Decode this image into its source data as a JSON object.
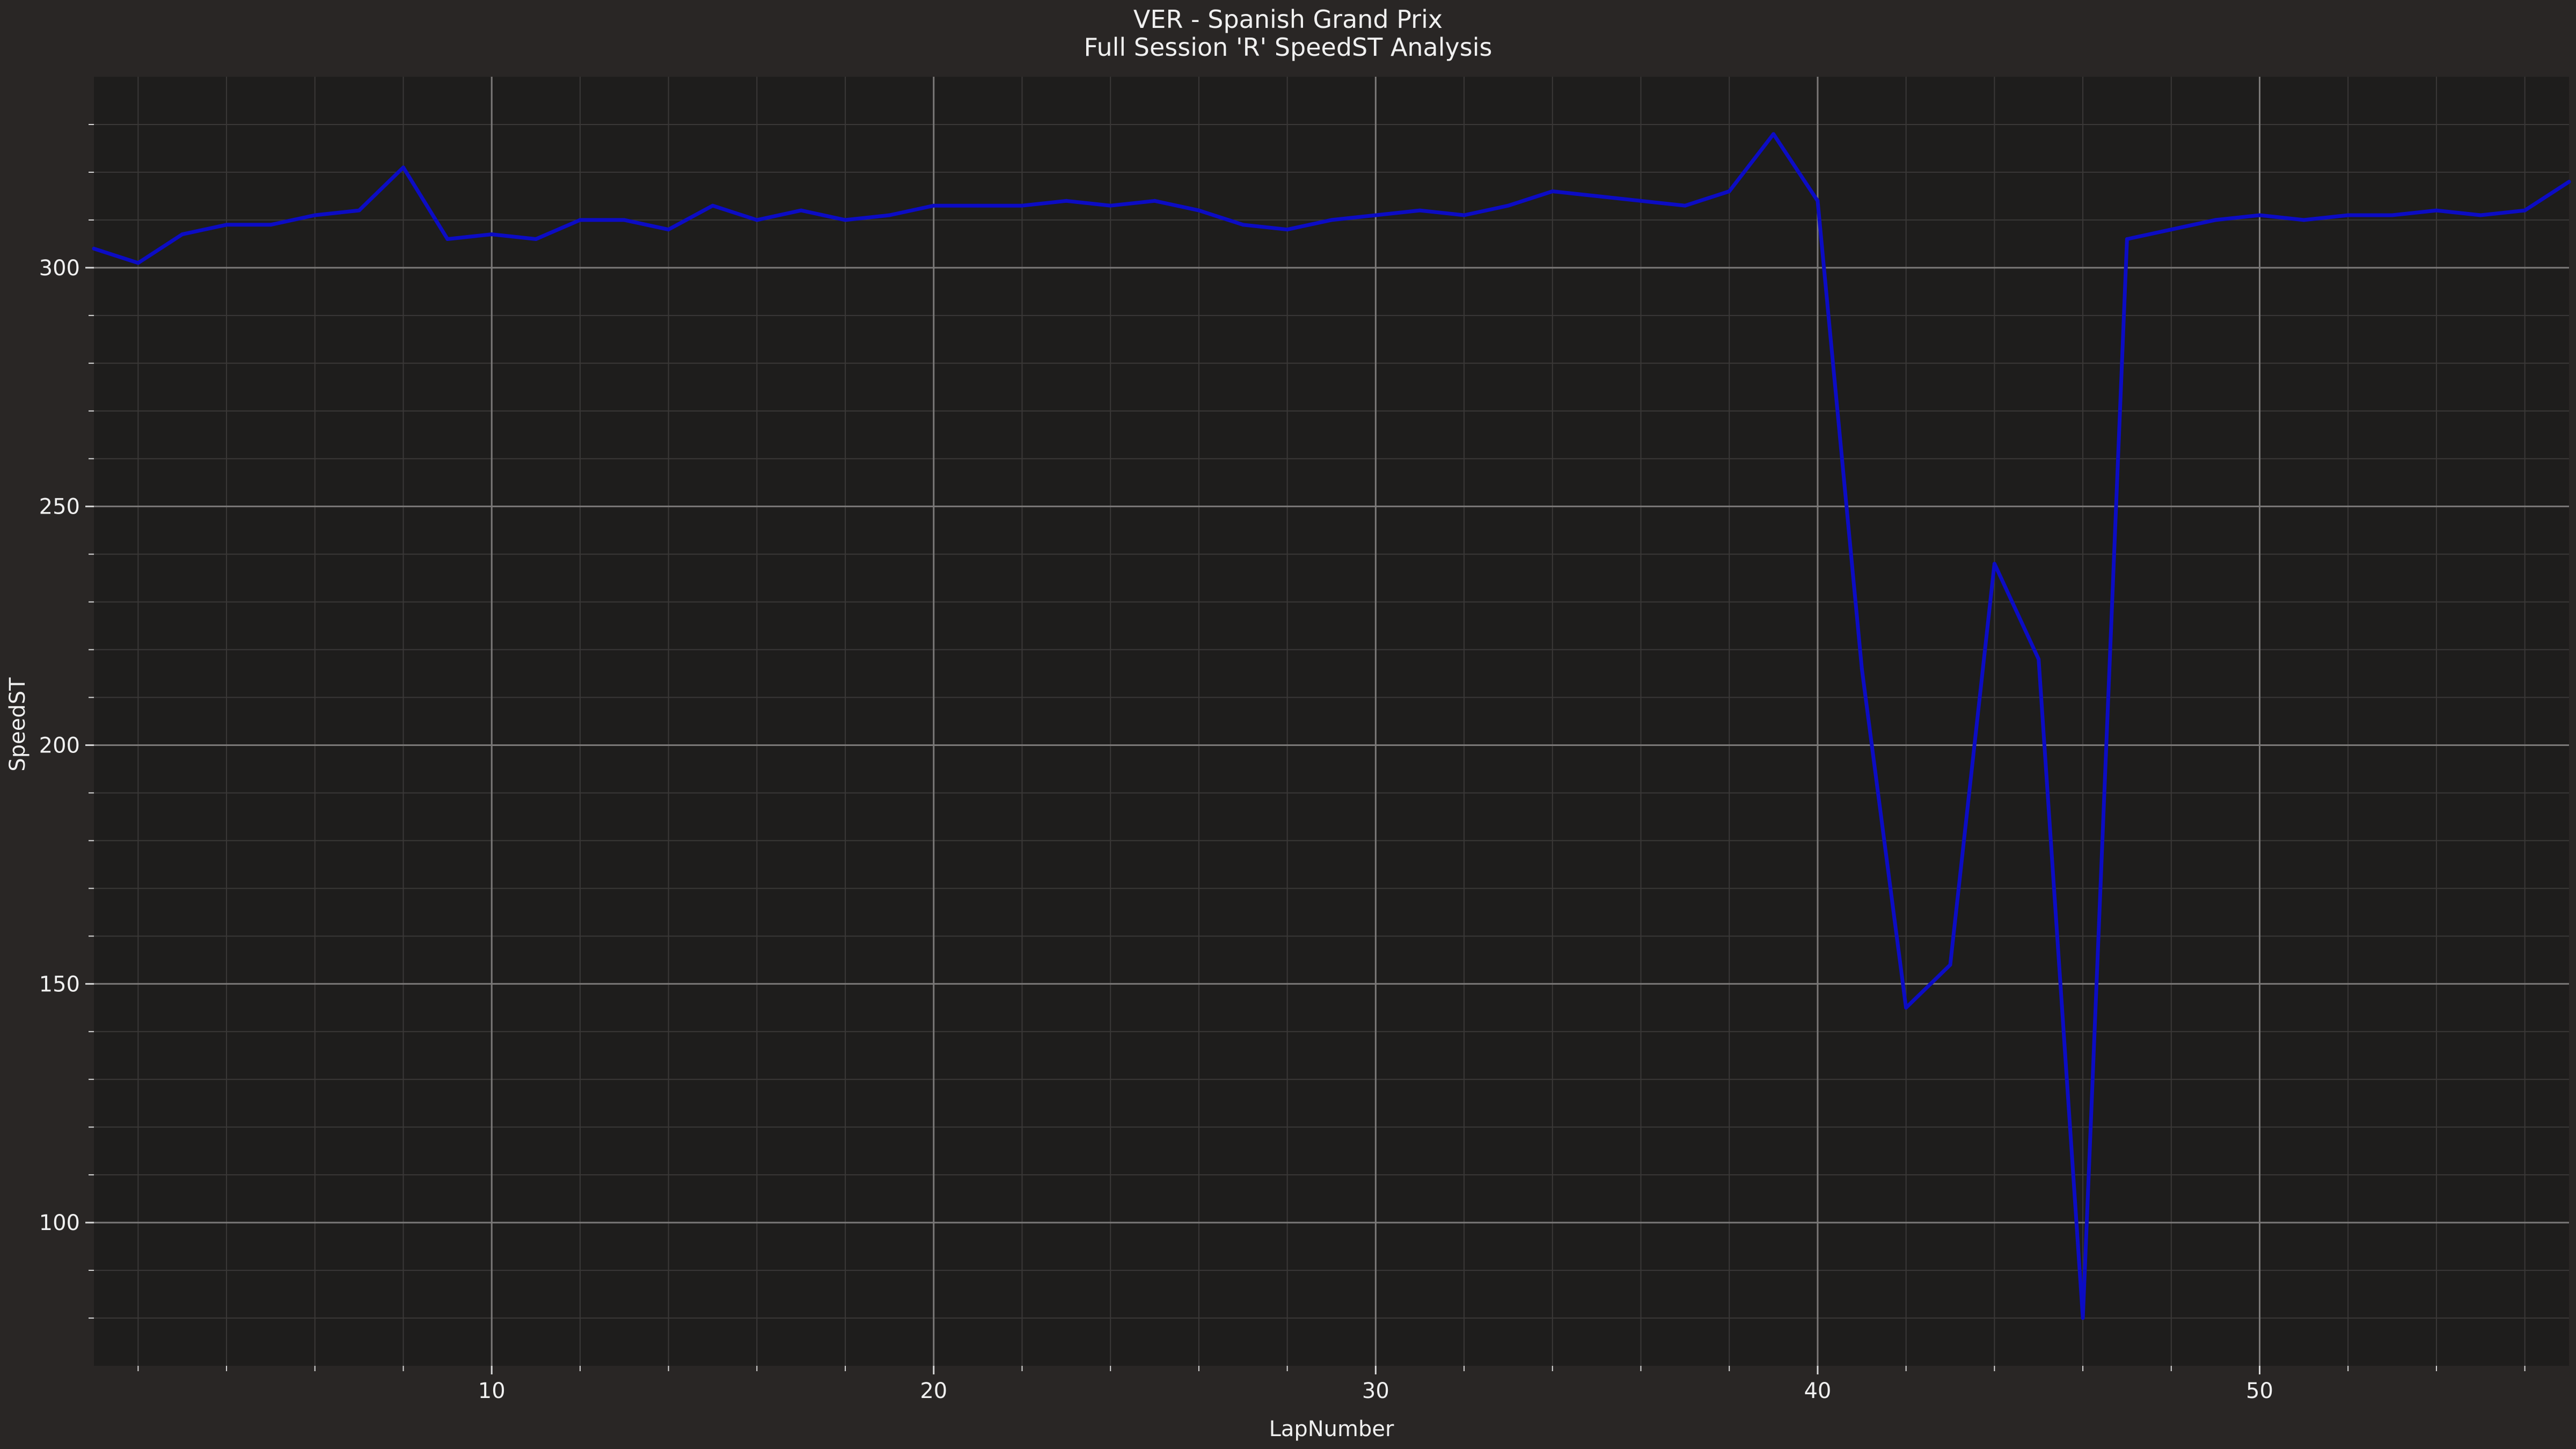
{
  "chart_data": {
    "type": "line",
    "title": "VER - Spanish Grand Prix",
    "subtitle": "Full Session 'R' SpeedST Analysis",
    "xlabel": "LapNumber",
    "ylabel": "SpeedST",
    "xlim": [
      1,
      57
    ],
    "ylim": [
      70,
      340
    ],
    "xticks": [
      10,
      20,
      30,
      40,
      50
    ],
    "yticks": [
      100,
      150,
      200,
      250,
      300
    ],
    "grid": true,
    "minor_grid": true,
    "series": [
      {
        "color": "#0c0cc4",
        "x": [
          1,
          2,
          3,
          4,
          5,
          6,
          7,
          8,
          9,
          10,
          11,
          12,
          13,
          14,
          15,
          16,
          17,
          18,
          19,
          20,
          21,
          22,
          23,
          24,
          25,
          26,
          27,
          28,
          29,
          30,
          31,
          32,
          33,
          34,
          35,
          36,
          37,
          38,
          39,
          40,
          41,
          42,
          43,
          44,
          45,
          46,
          47,
          48,
          49,
          50,
          51,
          52,
          53,
          54,
          55,
          56,
          57
        ],
        "y": [
          304,
          301,
          307,
          309,
          309,
          311,
          312,
          321,
          306,
          307,
          306,
          310,
          310,
          308,
          313,
          310,
          312,
          310,
          311,
          313,
          313,
          313,
          314,
          313,
          314,
          312,
          309,
          308,
          310,
          311,
          312,
          311,
          313,
          316,
          315,
          314,
          313,
          316,
          328,
          314,
          216,
          145,
          154,
          238,
          218,
          80,
          306,
          308,
          310,
          311,
          310,
          311,
          311,
          312,
          311,
          312,
          318
        ]
      }
    ]
  }
}
